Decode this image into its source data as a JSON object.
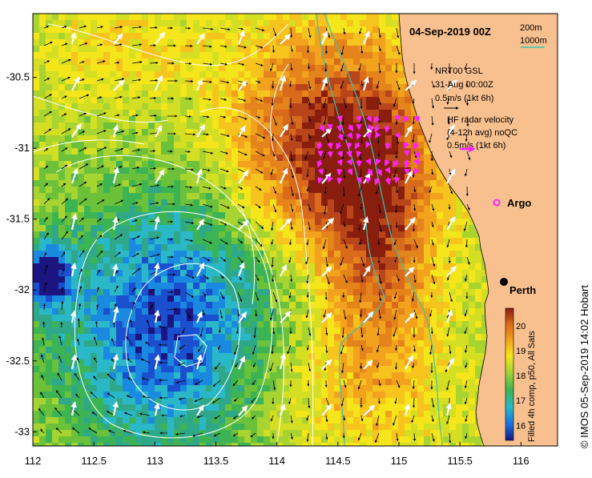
{
  "title": "04-Sep-2019 00Z",
  "depth_legend": {
    "items": [
      {
        "label": "200m",
        "color": "#1f6fd6"
      },
      {
        "label": "1000m",
        "color": "#38c4b0"
      }
    ]
  },
  "nrt_legend": {
    "line1": "NRT00 GSL",
    "line2": "31-Aug 00:00Z",
    "line3": "0.5m/s (1kt 6h)"
  },
  "hf_legend": {
    "line1": "HF radar velocity",
    "line2": "(4-12h avg) noQC",
    "line3": "0.5m/s (1kt 6h)",
    "arrow_color": "#ff22ff"
  },
  "places": {
    "argo": "Argo",
    "perth": "Perth"
  },
  "colorbar": {
    "caption": "Filled 4h comp, p50, All Sats",
    "ticks": [
      "20",
      "19",
      "18",
      "17",
      "16"
    ],
    "min": 15.4,
    "max": 20.7
  },
  "credit": "© IMOS 05-Sep-2019 14:02 Hobart",
  "axes": {
    "x_ticks": [
      "112",
      "112.5",
      "113",
      "113.5",
      "114",
      "114.5",
      "115",
      "115.5",
      "116"
    ],
    "y_ticks": [
      "-30.5",
      "-31",
      "-31.5",
      "-32",
      "-32.5",
      "-33"
    ],
    "xlim": [
      112,
      116.3
    ],
    "ylim": [
      -33.1,
      -30.05
    ]
  },
  "colors": {
    "land": "#f9c08f",
    "contour": "#ffffff",
    "arrow": "#000000",
    "model_arrow": "#ffffff"
  }
}
